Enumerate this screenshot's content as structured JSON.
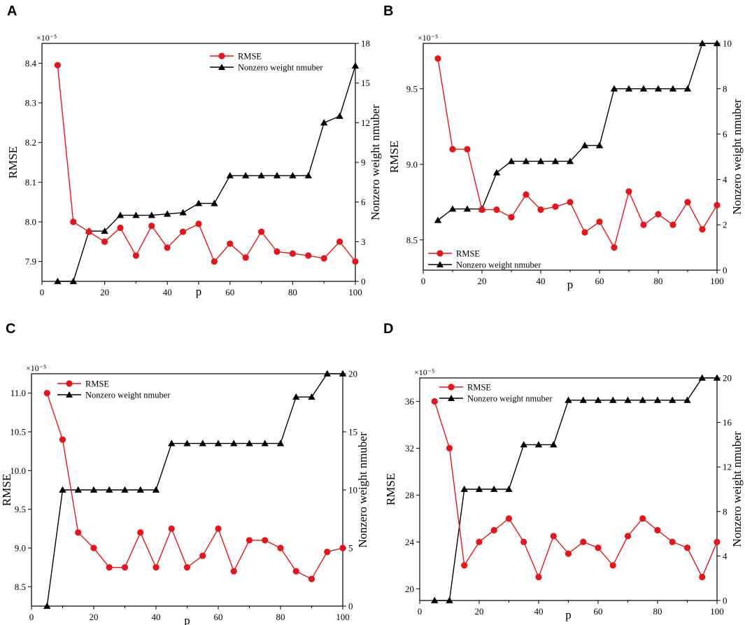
{
  "colors": {
    "rmse": "#e8141a",
    "nonzero": "#000000"
  },
  "chart_data": [
    {
      "panel": "A",
      "type": "line",
      "xlabel": "p",
      "ylabel": "RMSE",
      "y2label": "Nonzero weight nmuber",
      "multiplier": "×10⁻⁵",
      "xlim": [
        0,
        100
      ],
      "xticks": [
        0,
        20,
        40,
        60,
        80,
        100
      ],
      "x_tick_labels": [
        "0",
        "20",
        "40",
        "",
        "60",
        "80",
        "100"
      ],
      "x_tick_positions": [
        0,
        20,
        40,
        50,
        60,
        80,
        100
      ],
      "ylim": [
        7.85,
        8.45
      ],
      "yticks": [
        7.9,
        8.0,
        8.1,
        8.2,
        8.3,
        8.4
      ],
      "ytick_labels": [
        "7.9",
        "8.0",
        "8.1",
        "8.2",
        "8.3",
        "8.4"
      ],
      "y2lim": [
        0,
        18
      ],
      "y2ticks": [
        0,
        3,
        6,
        9,
        12,
        15,
        18
      ],
      "legend": "top-right",
      "x": [
        5,
        10,
        15,
        20,
        25,
        30,
        35,
        40,
        45,
        50,
        55,
        60,
        65,
        70,
        75,
        80,
        85,
        90,
        95,
        100
      ],
      "series": [
        {
          "name": "RMSE",
          "axis": "left",
          "marker": "circle",
          "values": [
            8.395,
            8.0,
            7.975,
            7.95,
            7.985,
            7.915,
            7.99,
            7.935,
            7.975,
            7.995,
            7.9,
            7.945,
            7.91,
            7.975,
            7.925,
            7.92,
            7.915,
            7.908,
            7.95,
            7.9
          ]
        },
        {
          "name": "Nonzero weight nmuber",
          "axis": "right",
          "marker": "triangle",
          "values": [
            0,
            0,
            3.8,
            3.8,
            5,
            5,
            5,
            5.1,
            5.2,
            5.9,
            5.9,
            8,
            8,
            8,
            8,
            8,
            8,
            12,
            12.5,
            16.3
          ]
        }
      ]
    },
    {
      "panel": "B",
      "type": "line",
      "xlabel": "p",
      "ylabel": "RMSE",
      "y2label": "Nonzero weight nmuber",
      "multiplier": "×10⁻⁵",
      "xlim": [
        0,
        100
      ],
      "xticks": [
        0,
        20,
        40,
        60,
        80,
        100
      ],
      "x_tick_labels": [
        "0",
        "20",
        "40",
        "60",
        "80",
        "100"
      ],
      "x_tick_positions": [
        0,
        20,
        40,
        60,
        80,
        100
      ],
      "ylim": [
        8.3,
        9.8
      ],
      "yticks": [
        8.5,
        9.0,
        9.5
      ],
      "ytick_labels": [
        "8.5",
        "9.0",
        "9.5"
      ],
      "y2lim": [
        0,
        10
      ],
      "y2ticks": [
        0,
        2,
        4,
        6,
        8,
        10
      ],
      "legend": "bottom-left",
      "x": [
        5,
        10,
        15,
        20,
        25,
        30,
        35,
        40,
        45,
        50,
        55,
        60,
        65,
        70,
        75,
        80,
        85,
        90,
        95,
        100
      ],
      "series": [
        {
          "name": "RMSE",
          "axis": "left",
          "marker": "circle",
          "values": [
            9.7,
            9.1,
            9.1,
            8.7,
            8.7,
            8.65,
            8.8,
            8.7,
            8.72,
            8.75,
            8.55,
            8.62,
            8.45,
            8.82,
            8.6,
            8.67,
            8.6,
            8.75,
            8.57,
            8.73
          ]
        },
        {
          "name": "Nonzero weight nmuber",
          "axis": "right",
          "marker": "triangle",
          "values": [
            2.2,
            2.7,
            2.7,
            2.7,
            4.3,
            4.8,
            4.8,
            4.8,
            4.8,
            4.8,
            5.5,
            5.5,
            8,
            8,
            8,
            8,
            8,
            8,
            10,
            10
          ]
        }
      ]
    },
    {
      "panel": "C",
      "type": "line",
      "xlabel": "p",
      "ylabel": "RMSE",
      "y2label": "Nonzero weight nmuber",
      "multiplier": "×10⁻⁵",
      "xlim": [
        0,
        100
      ],
      "xticks": [
        0,
        20,
        40,
        60,
        80,
        100
      ],
      "x_tick_labels": [
        "0",
        "20",
        "40",
        "60",
        "80",
        "100"
      ],
      "x_tick_positions": [
        0,
        20,
        40,
        60,
        80,
        100
      ],
      "ylim": [
        8.25,
        11.25
      ],
      "yticks": [
        8.5,
        9.0,
        9.5,
        10.0,
        10.5,
        11.0
      ],
      "ytick_labels": [
        "8.5",
        "9.0",
        "9.5",
        "10.0",
        "10.5",
        "11.0"
      ],
      "y2lim": [
        0,
        20
      ],
      "y2ticks": [
        0,
        5,
        10,
        15,
        20
      ],
      "legend": "top-left",
      "x": [
        5,
        10,
        15,
        20,
        25,
        30,
        35,
        40,
        45,
        50,
        55,
        60,
        65,
        70,
        75,
        80,
        85,
        90,
        95,
        100
      ],
      "series": [
        {
          "name": "RMSE",
          "axis": "left",
          "marker": "circle",
          "values": [
            11.0,
            10.4,
            9.2,
            9.0,
            8.75,
            8.75,
            9.2,
            8.75,
            9.25,
            8.75,
            8.9,
            9.25,
            8.7,
            9.1,
            9.1,
            9.0,
            8.7,
            8.6,
            8.95,
            9.0
          ]
        },
        {
          "name": "Nonzero weight nmuber",
          "axis": "right",
          "marker": "triangle",
          "values": [
            0,
            10,
            10,
            10,
            10,
            10,
            10,
            10,
            14,
            14,
            14,
            14,
            14,
            14,
            14,
            14,
            18,
            18,
            20,
            20
          ]
        }
      ]
    },
    {
      "panel": "D",
      "type": "line",
      "xlabel": "p",
      "ylabel": "RMSE",
      "y2label": "Nonzero weight nmuber",
      "multiplier": "×10⁻⁵",
      "xlim": [
        0,
        100
      ],
      "xticks": [
        0,
        20,
        40,
        60,
        80,
        100
      ],
      "x_tick_labels": [
        "0",
        "20",
        "40",
        "60",
        "80",
        "100"
      ],
      "x_tick_positions": [
        0,
        20,
        40,
        60,
        80,
        100
      ],
      "ylim": [
        19,
        38
      ],
      "yticks": [
        20,
        24,
        28,
        32,
        36
      ],
      "ytick_labels": [
        "20",
        "24",
        "28",
        "32",
        "36"
      ],
      "y2lim": [
        0,
        20
      ],
      "y2ticks": [
        0,
        4,
        8,
        12,
        16,
        20
      ],
      "legend": "top-left",
      "x": [
        5,
        10,
        15,
        20,
        25,
        30,
        35,
        40,
        45,
        50,
        55,
        60,
        65,
        70,
        75,
        80,
        85,
        90,
        95,
        100
      ],
      "series": [
        {
          "name": "RMSE",
          "axis": "left",
          "marker": "circle",
          "values": [
            36,
            32,
            22,
            24,
            25,
            26,
            24,
            21,
            24.5,
            23,
            24,
            23.5,
            22,
            24.5,
            26,
            25,
            24,
            23.5,
            21,
            24
          ]
        },
        {
          "name": "Nonzero weight nmuber",
          "axis": "right",
          "marker": "triangle",
          "values": [
            0,
            0,
            10,
            10,
            10,
            10,
            14,
            14,
            14,
            18,
            18,
            18,
            18,
            18,
            18,
            18,
            18,
            18,
            20,
            20
          ]
        }
      ]
    }
  ]
}
